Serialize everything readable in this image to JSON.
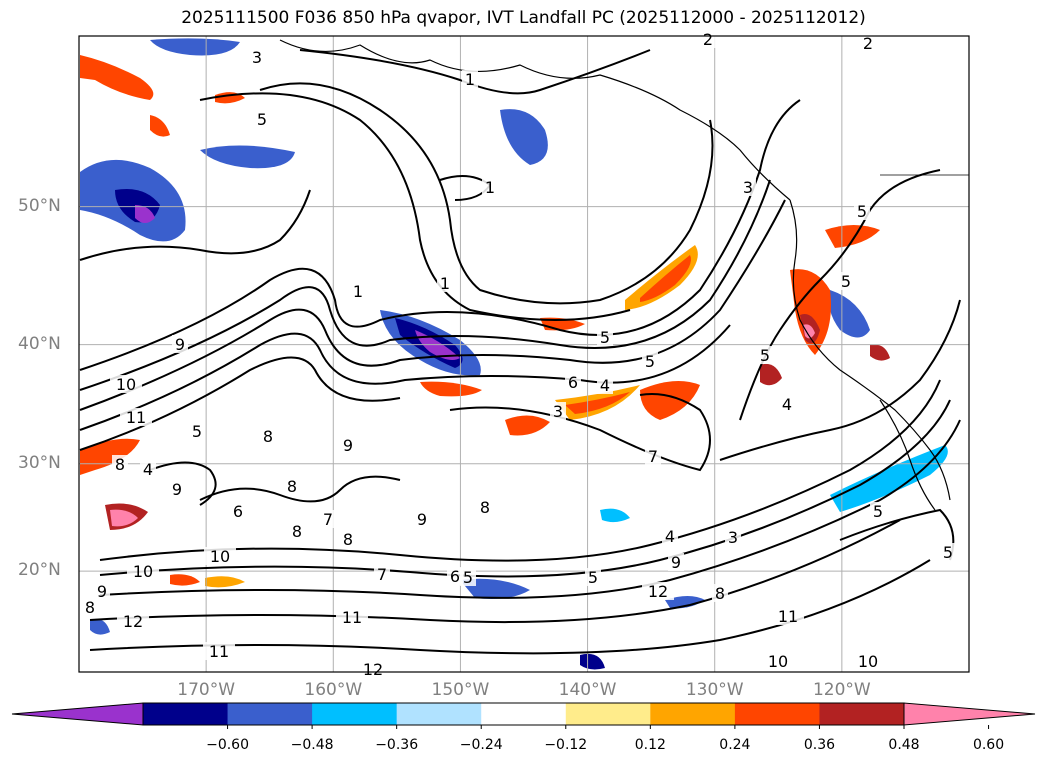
{
  "title": "2025111500 F036 850 hPa qvapor, IVT Landfall PC (2025112000 - 2025112012)",
  "lat_labels": [
    "50°N",
    "40°N",
    "30°N",
    "20°N"
  ],
  "lat_values": [
    50,
    40,
    30,
    20
  ],
  "lon_labels": [
    "170°W",
    "160°W",
    "150°W",
    "140°W",
    "130°W",
    "120°W"
  ],
  "lon_values": [
    -170,
    -160,
    -150,
    -140,
    -130,
    -120
  ],
  "map_extent": {
    "lon_min": -180,
    "lon_max": -110,
    "lat_min": 10,
    "lat_max": 60
  },
  "colorbar": {
    "colors": [
      "#9a32cd",
      "#00008b",
      "#3a5fcd",
      "#00bfff",
      "#b0e2ff",
      "#ffffff",
      "#ffec8b",
      "#ffa500",
      "#ff4500",
      "#b22222",
      "#ff82ab"
    ],
    "tick_labels": [
      "−0.60",
      "−0.48",
      "−0.36",
      "−0.24",
      "−0.12",
      "0.12",
      "0.24",
      "0.36",
      "0.48",
      "0.60"
    ]
  },
  "contour_labels": [
    "3",
    "2",
    "2",
    "1",
    "5",
    "1",
    "1",
    "1",
    "5",
    "5",
    "6",
    "4",
    "5",
    "3",
    "4",
    "5",
    "5",
    "3",
    "9",
    "10",
    "11",
    "5",
    "8",
    "4",
    "9",
    "8",
    "6",
    "8",
    "9",
    "8",
    "7",
    "8",
    "7",
    "6",
    "5",
    "9",
    "8",
    "10",
    "10",
    "9",
    "8",
    "12",
    "11",
    "12",
    "11",
    "12",
    "11",
    "10",
    "10",
    "5",
    "3",
    "4",
    "8",
    "9",
    "5",
    "5",
    "7"
  ],
  "colors": {
    "contour": "#000000",
    "axis_label": "#808080",
    "grid": "#b0b0b0"
  }
}
